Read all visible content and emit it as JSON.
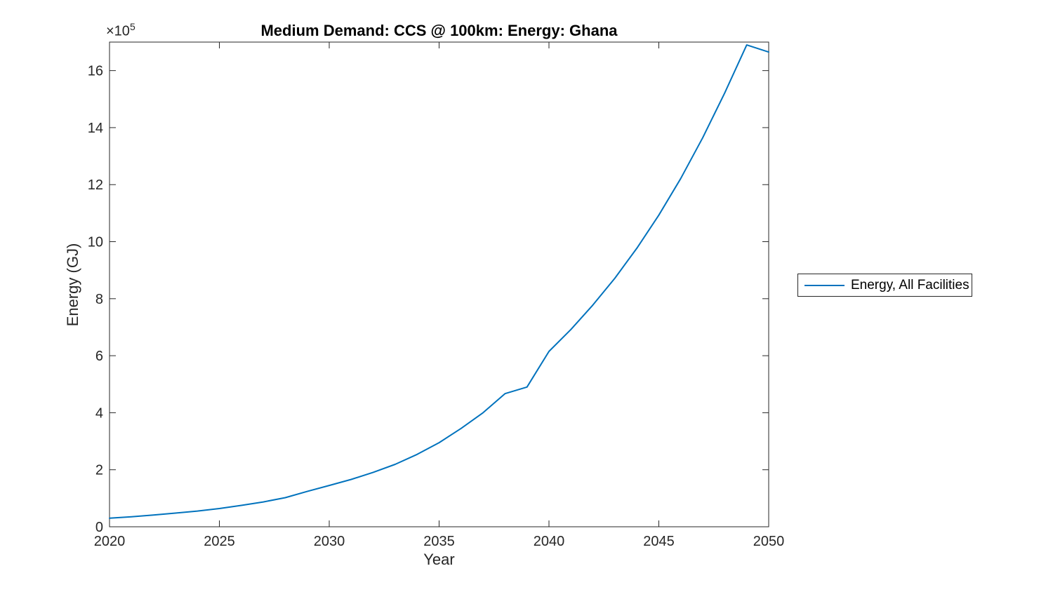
{
  "figure": {
    "background": "#ffffff"
  },
  "chart_data": {
    "type": "line",
    "title": "Medium Demand: CCS @ 100km: Energy: Ghana",
    "xlabel": "Year",
    "ylabel": "Energy (GJ)",
    "y_offset_base": "×10",
    "y_offset_exp": "5",
    "values_unit": "1e5 GJ",
    "xlim": [
      2020,
      2050
    ],
    "ylim": [
      0,
      17
    ],
    "x_ticks": [
      2020,
      2025,
      2030,
      2035,
      2040,
      2045,
      2050
    ],
    "y_ticks": [
      0,
      2,
      4,
      6,
      8,
      10,
      12,
      14,
      16
    ],
    "grid": false,
    "legend_position": "right-outside",
    "axis_color": "#262626",
    "series": [
      {
        "name": "Energy, All Facilities",
        "color": "#0072BD",
        "x": [
          2020,
          2021,
          2022,
          2023,
          2024,
          2025,
          2026,
          2027,
          2028,
          2029,
          2030,
          2031,
          2032,
          2033,
          2034,
          2035,
          2036,
          2037,
          2038,
          2039,
          2040,
          2041,
          2042,
          2043,
          2044,
          2045,
          2046,
          2047,
          2048,
          2049,
          2050
        ],
        "values": [
          0.3,
          0.35,
          0.41,
          0.48,
          0.55,
          0.64,
          0.75,
          0.87,
          1.02,
          1.24,
          1.45,
          1.66,
          1.91,
          2.19,
          2.54,
          2.95,
          3.45,
          4.0,
          4.67,
          4.9,
          6.15,
          6.92,
          7.78,
          8.72,
          9.77,
          10.93,
          12.22,
          13.65,
          15.22,
          16.9,
          16.65
        ]
      }
    ]
  }
}
